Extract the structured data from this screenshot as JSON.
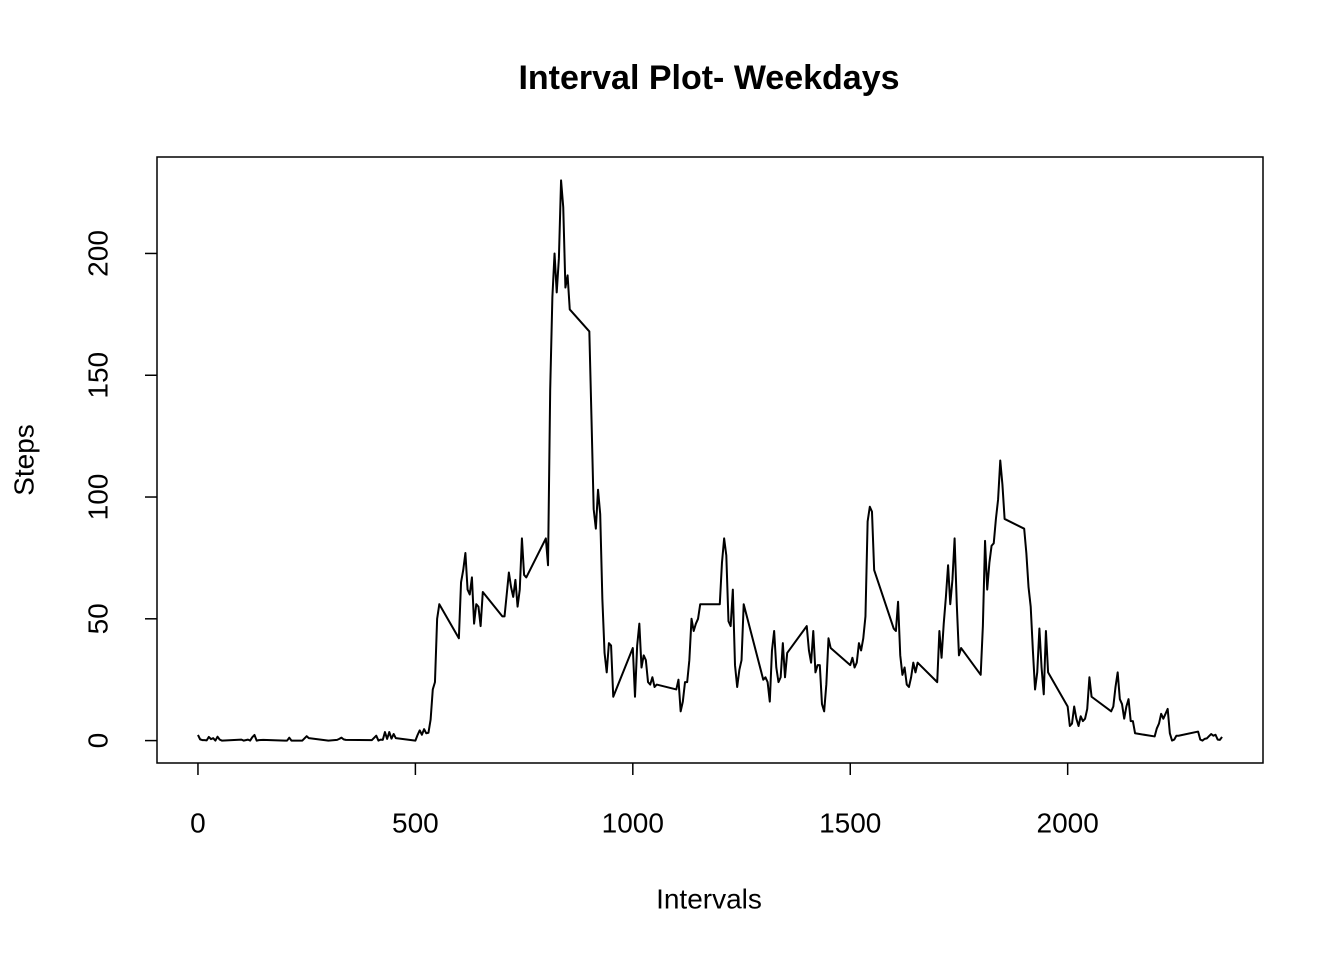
{
  "chart_data": {
    "type": "line",
    "title": "Interval Plot- Weekdays",
    "x_label": "Intervals",
    "y_label": "Steps",
    "color": "#000000",
    "x": [
      0,
      5,
      10,
      15,
      20,
      25,
      30,
      35,
      40,
      45,
      50,
      55,
      100,
      105,
      110,
      115,
      120,
      125,
      130,
      135,
      140,
      150,
      200,
      205,
      210,
      215,
      220,
      230,
      240,
      250,
      255,
      300,
      320,
      325,
      330,
      335,
      340,
      400,
      410,
      415,
      420,
      425,
      430,
      435,
      440,
      445,
      450,
      455,
      500,
      505,
      510,
      515,
      520,
      525,
      530,
      535,
      540,
      545,
      550,
      555,
      600,
      605,
      610,
      615,
      620,
      625,
      630,
      635,
      640,
      645,
      650,
      655,
      700,
      705,
      710,
      715,
      720,
      725,
      730,
      735,
      740,
      745,
      750,
      755,
      800,
      805,
      810,
      815,
      820,
      825,
      830,
      835,
      840,
      845,
      850,
      855,
      900,
      905,
      910,
      915,
      920,
      925,
      930,
      935,
      940,
      945,
      950,
      955,
      1000,
      1005,
      1010,
      1015,
      1020,
      1025,
      1030,
      1035,
      1040,
      1045,
      1050,
      1055,
      1100,
      1105,
      1110,
      1115,
      1120,
      1125,
      1130,
      1135,
      1140,
      1145,
      1150,
      1155,
      1200,
      1205,
      1210,
      1215,
      1220,
      1225,
      1230,
      1235,
      1240,
      1245,
      1250,
      1255,
      1300,
      1305,
      1310,
      1315,
      1320,
      1325,
      1330,
      1335,
      1340,
      1345,
      1350,
      1355,
      1400,
      1405,
      1410,
      1415,
      1420,
      1425,
      1430,
      1435,
      1440,
      1445,
      1450,
      1455,
      1500,
      1505,
      1510,
      1515,
      1520,
      1525,
      1530,
      1535,
      1540,
      1545,
      1550,
      1555,
      1600,
      1605,
      1610,
      1615,
      1620,
      1625,
      1630,
      1635,
      1640,
      1645,
      1650,
      1655,
      1700,
      1705,
      1710,
      1715,
      1720,
      1725,
      1730,
      1735,
      1740,
      1745,
      1750,
      1755,
      1800,
      1805,
      1810,
      1815,
      1820,
      1825,
      1830,
      1835,
      1840,
      1845,
      1850,
      1855,
      1900,
      1905,
      1910,
      1915,
      1920,
      1925,
      1930,
      1935,
      1940,
      1945,
      1950,
      1955,
      2000,
      2005,
      2010,
      2015,
      2020,
      2025,
      2030,
      2035,
      2040,
      2045,
      2050,
      2055,
      2100,
      2105,
      2110,
      2115,
      2120,
      2125,
      2130,
      2135,
      2140,
      2145,
      2150,
      2155,
      2200,
      2205,
      2210,
      2215,
      2220,
      2225,
      2230,
      2235,
      2240,
      2245,
      2250,
      2255,
      2300,
      2305,
      2310,
      2315,
      2320,
      2325,
      2330,
      2335,
      2340,
      2345,
      2350,
      2355
    ],
    "values": [
      2.3,
      0.5,
      0.2,
      0.2,
      0.1,
      1.5,
      0.6,
      1.0,
      0,
      1.6,
      0.4,
      0,
      0.4,
      0,
      0.2,
      0.4,
      0,
      1.4,
      2.3,
      0,
      0.2,
      0.3,
      0,
      0,
      1.2,
      0,
      0,
      0,
      0,
      1.8,
      1.0,
      0,
      0.3,
      0.7,
      1.2,
      0.5,
      0.3,
      0.2,
      2.0,
      0,
      0.4,
      0.3,
      3.5,
      0.7,
      3.5,
      0.8,
      2.7,
      1,
      0,
      2.3,
      4.2,
      2.4,
      4.7,
      3.0,
      3.2,
      8.6,
      21,
      24,
      50,
      56,
      42,
      65,
      70,
      77,
      62,
      60,
      67,
      48,
      56,
      55,
      47,
      61,
      51,
      51,
      60,
      69,
      63,
      59,
      66,
      55,
      62,
      83,
      68,
      67,
      83,
      72,
      144,
      182,
      200,
      184,
      198,
      230,
      219,
      186,
      191,
      177,
      168,
      132,
      95,
      87,
      103,
      93,
      58,
      36,
      28,
      40,
      39,
      18,
      38,
      18,
      39,
      48,
      30,
      35,
      33,
      24,
      23,
      26,
      22,
      23,
      21,
      25,
      12,
      16,
      24,
      24,
      33,
      50,
      45,
      48,
      50,
      56,
      56,
      73,
      83,
      76,
      49,
      47,
      62,
      31,
      22,
      29,
      33,
      56,
      25,
      26,
      24,
      16,
      37,
      45,
      30,
      24,
      26,
      40,
      26,
      36,
      47,
      37,
      32,
      45,
      28,
      31,
      31,
      15,
      12,
      23,
      42,
      38,
      31,
      34,
      30,
      32,
      40,
      37,
      42,
      51,
      90,
      96,
      94,
      70,
      46,
      45,
      57,
      35,
      27,
      30,
      23,
      22,
      26,
      32,
      28,
      32,
      24,
      45,
      34,
      48,
      59,
      72,
      56,
      66,
      83,
      56,
      35,
      38,
      27,
      47,
      82,
      62,
      73,
      80,
      81,
      91,
      99,
      115,
      105,
      91,
      87,
      77,
      63,
      55,
      37,
      21,
      28,
      46,
      30,
      19,
      45,
      28,
      14,
      6,
      7,
      14,
      9,
      6,
      10,
      8,
      9,
      13,
      26,
      18,
      12,
      14,
      22,
      28,
      17,
      15,
      9,
      14,
      17,
      8,
      8,
      3,
      1.7,
      5,
      7,
      11,
      9,
      11,
      13,
      3,
      0,
      0.4,
      2,
      2,
      3.7,
      0.4,
      0,
      0.7,
      0.9,
      1.8,
      2.7,
      2,
      2.4,
      0.4,
      0.3,
      1.5
    ],
    "xlim": [
      -94.2,
      2449.2
    ],
    "ylim": [
      -9.2,
      239.6
    ],
    "xticks": [
      0,
      500,
      1000,
      1500,
      2000
    ],
    "yticks": [
      0,
      50,
      100,
      150,
      200
    ]
  }
}
